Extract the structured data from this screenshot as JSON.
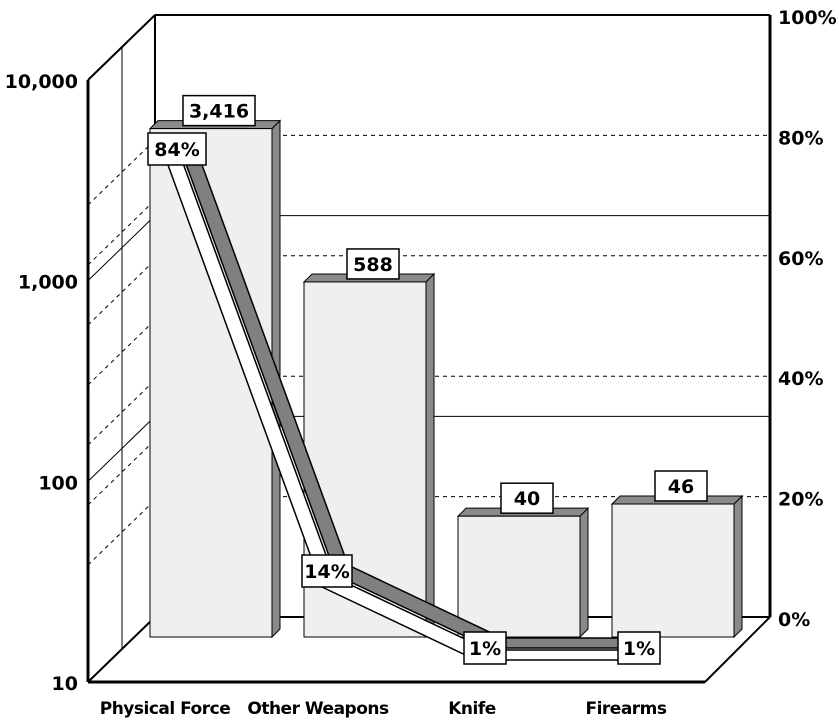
{
  "chart_data": {
    "type": "bar",
    "categories": [
      "Physical Force",
      "Other Weapons",
      "Knife",
      "Firearms"
    ],
    "series": [
      {
        "values": [
          3416,
          588,
          40,
          46
        ],
        "axis": "left"
      },
      {
        "type": "line",
        "values": [
          84,
          14,
          1,
          1
        ],
        "labels": [
          "84%",
          "14%",
          "1%",
          "1%"
        ],
        "axis": "right"
      }
    ],
    "bar_labels": [
      "3,416",
      "588",
      "40",
      "46"
    ],
    "y_left": {
      "scale": "log",
      "ylim": [
        10,
        10000
      ],
      "ticks": [
        "10",
        "100",
        "1,000",
        "10,000"
      ]
    },
    "y_right": {
      "ylim": [
        0,
        100
      ],
      "ticks": [
        "0%",
        "20%",
        "40%",
        "60%",
        "80%",
        "100%"
      ]
    },
    "style": "3d",
    "grid": true,
    "colors": {
      "bar": "#efefef",
      "bar_side": "#8a8a8a",
      "line_shadow": "#808080",
      "line": "#ffffff"
    }
  }
}
